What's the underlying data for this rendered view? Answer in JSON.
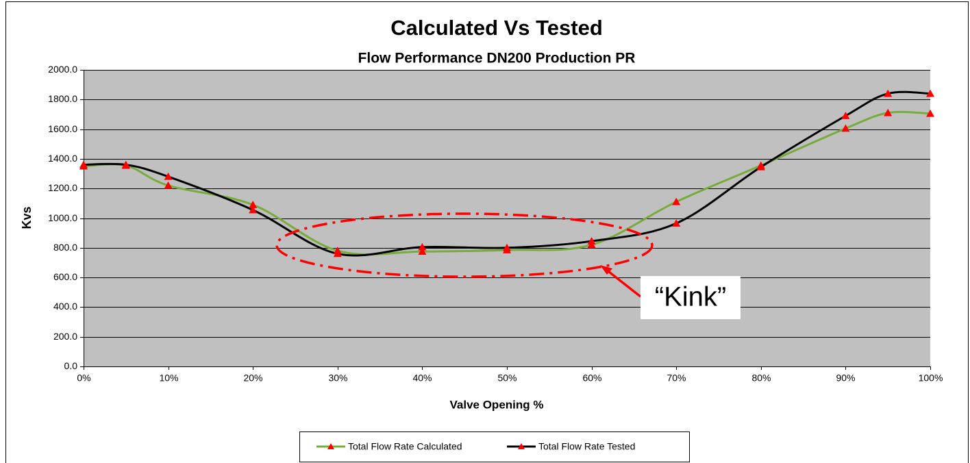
{
  "chart_data": {
    "type": "line",
    "title": "Calculated Vs Tested",
    "subtitle": "Flow Performance DN200 Production PR",
    "x_label": "Valve Opening %",
    "y_label": "Kvs",
    "x": [
      0,
      5,
      10,
      20,
      30,
      40,
      50,
      60,
      70,
      80,
      90,
      95,
      100
    ],
    "series": [
      {
        "name": "Total Flow Rate Calculated",
        "color": "#77ac3c",
        "marker_color": "#ff0000",
        "values": [
          1350,
          1355,
          1220,
          1090,
          780,
          775,
          785,
          820,
          1110,
          1355,
          1605,
          1710,
          1705
        ]
      },
      {
        "name": "Total Flow Rate Tested",
        "color": "#000000",
        "marker_color": "#ff0000",
        "values": [
          1360,
          1360,
          1280,
          1055,
          760,
          805,
          800,
          845,
          965,
          1345,
          1690,
          1840,
          1840
        ]
      }
    ],
    "xlim": [
      0,
      100
    ],
    "xticks": [
      {
        "value": 0,
        "label": "0%"
      },
      {
        "value": 10,
        "label": "10%"
      },
      {
        "value": 20,
        "label": "20%"
      },
      {
        "value": 30,
        "label": "30%"
      },
      {
        "value": 40,
        "label": "40%"
      },
      {
        "value": 50,
        "label": "50%"
      },
      {
        "value": 60,
        "label": "60%"
      },
      {
        "value": 70,
        "label": "70%"
      },
      {
        "value": 80,
        "label": "80%"
      },
      {
        "value": 90,
        "label": "90%"
      },
      {
        "value": 100,
        "label": "100%"
      }
    ],
    "ylim": [
      0,
      2000
    ],
    "yticks": [
      {
        "value": 0,
        "label": "0.0"
      },
      {
        "value": 200,
        "label": "200.0"
      },
      {
        "value": 400,
        "label": "400.0"
      },
      {
        "value": 600,
        "label": "600.0"
      },
      {
        "value": 800,
        "label": "800.0"
      },
      {
        "value": 1000,
        "label": "1000.0"
      },
      {
        "value": 1200,
        "label": "1200.0"
      },
      {
        "value": 1400,
        "label": "1400.0"
      },
      {
        "value": 1600,
        "label": "1600.0"
      },
      {
        "value": 1800,
        "label": "1800.0"
      },
      {
        "value": 2000,
        "label": "2000.0"
      }
    ],
    "grid": true,
    "legend": "bottom",
    "annotation": "“Kink”"
  }
}
